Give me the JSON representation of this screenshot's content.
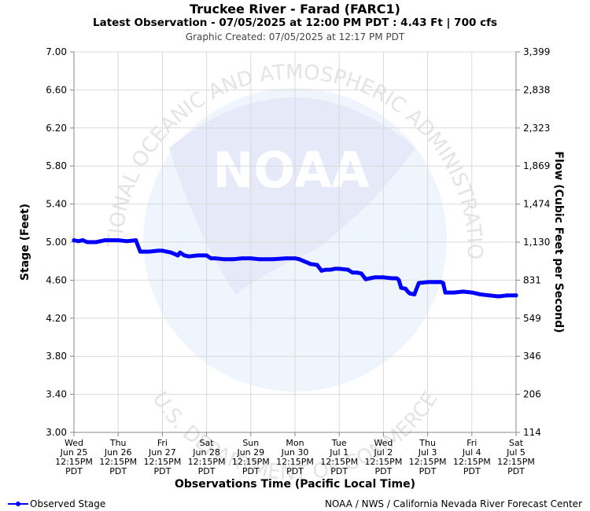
{
  "header": {
    "title": "Truckee River - Farad (FARC1)",
    "subtitle": "Latest Observation - 07/05/2025 at 12:00 PM PDT : 4.43 Ft | 700 cfs",
    "created": "Graphic Created: 07/05/2025 at 12:17 PM PDT"
  },
  "footer": {
    "legend_label": "Observed Stage",
    "credit": "NOAA / NWS / California Nevada River Forecast Center"
  },
  "watermark": {
    "logo_text": "NOAA",
    "ring_top": "NATIONAL OCEANIC AND ATMOSPHERIC ADMINISTRATION",
    "ring_bottom": "U.S. DEPARTMENT OF COMMERCE"
  },
  "colors": {
    "series": "#0000ff",
    "grid": "#d9d9d9",
    "axis": "#888888",
    "watermark_dark": "#e6e9f8",
    "watermark_light": "#eef5fc"
  },
  "chart_data": {
    "type": "line",
    "xlabel": "Observations Time (Pacific Local Time)",
    "ylabel": "Stage (Feet)",
    "y2label": "Flow (Cubic Feet per Second)",
    "ylim": [
      3.0,
      7.0
    ],
    "y_ticks": [
      "3.00",
      "3.40",
      "3.80",
      "4.20",
      "4.60",
      "5.00",
      "5.40",
      "5.80",
      "6.20",
      "6.60",
      "7.00"
    ],
    "y2_ticks": [
      "114",
      "206",
      "346",
      "549",
      "831",
      "1,130",
      "1,474",
      "1,869",
      "2,323",
      "2,838",
      "3,399"
    ],
    "x_ticks": [
      [
        "Wed",
        "Jun 25",
        "12:15PM",
        "PDT"
      ],
      [
        "Thu",
        "Jun 26",
        "12:15PM",
        "PDT"
      ],
      [
        "Fri",
        "Jun 27",
        "12:15PM",
        "PDT"
      ],
      [
        "Sat",
        "Jun 28",
        "12:15PM",
        "PDT"
      ],
      [
        "Sun",
        "Jun 29",
        "12:15PM",
        "PDT"
      ],
      [
        "Mon",
        "Jun 30",
        "12:15PM",
        "PDT"
      ],
      [
        "Tue",
        "Jul 1",
        "12:15PM",
        "PDT"
      ],
      [
        "Wed",
        "Jul 2",
        "12:15PM",
        "PDT"
      ],
      [
        "Thu",
        "Jul 3",
        "12:15PM",
        "PDT"
      ],
      [
        "Fri",
        "Jul 4",
        "12:15PM",
        "PDT"
      ],
      [
        "Sat",
        "Jul 5",
        "12:15PM",
        "PDT"
      ]
    ],
    "xlim_days": [
      0,
      10
    ],
    "grid": true,
    "legend": "bottom-left",
    "series": [
      {
        "name": "Observed Stage",
        "x_days": [
          0.0,
          0.1,
          0.2,
          0.3,
          0.4,
          0.5,
          0.6,
          0.7,
          0.8,
          0.9,
          1.0,
          1.2,
          1.4,
          1.5,
          1.55,
          1.6,
          1.7,
          1.9,
          2.0,
          2.1,
          2.2,
          2.3,
          2.35,
          2.4,
          2.5,
          2.6,
          2.8,
          3.0,
          3.1,
          3.2,
          3.4,
          3.6,
          3.8,
          4.0,
          4.2,
          4.5,
          4.8,
          5.0,
          5.1,
          5.2,
          5.3,
          5.35,
          5.5,
          5.6,
          5.7,
          5.8,
          5.9,
          6.0,
          6.2,
          6.3,
          6.4,
          6.5,
          6.6,
          6.7,
          6.8,
          7.0,
          7.2,
          7.3,
          7.35,
          7.4,
          7.5,
          7.55,
          7.6,
          7.7,
          7.8,
          8.0,
          8.2,
          8.3,
          8.35,
          8.4,
          8.6,
          8.8,
          9.0,
          9.2,
          9.4,
          9.6,
          9.8,
          10.0
        ],
        "y": [
          5.02,
          5.01,
          5.02,
          5.0,
          5.0,
          5.0,
          5.01,
          5.02,
          5.02,
          5.02,
          5.02,
          5.01,
          5.02,
          4.9,
          4.9,
          4.9,
          4.9,
          4.91,
          4.91,
          4.9,
          4.89,
          4.87,
          4.86,
          4.89,
          4.86,
          4.85,
          4.86,
          4.86,
          4.83,
          4.83,
          4.82,
          4.82,
          4.83,
          4.83,
          4.82,
          4.82,
          4.83,
          4.83,
          4.82,
          4.8,
          4.78,
          4.77,
          4.76,
          4.7,
          4.71,
          4.71,
          4.72,
          4.72,
          4.71,
          4.68,
          4.68,
          4.67,
          4.61,
          4.62,
          4.63,
          4.63,
          4.62,
          4.62,
          4.6,
          4.52,
          4.51,
          4.48,
          4.46,
          4.45,
          4.57,
          4.58,
          4.58,
          4.58,
          4.57,
          4.47,
          4.47,
          4.48,
          4.47,
          4.45,
          4.44,
          4.43,
          4.44,
          4.44
        ]
      }
    ]
  }
}
